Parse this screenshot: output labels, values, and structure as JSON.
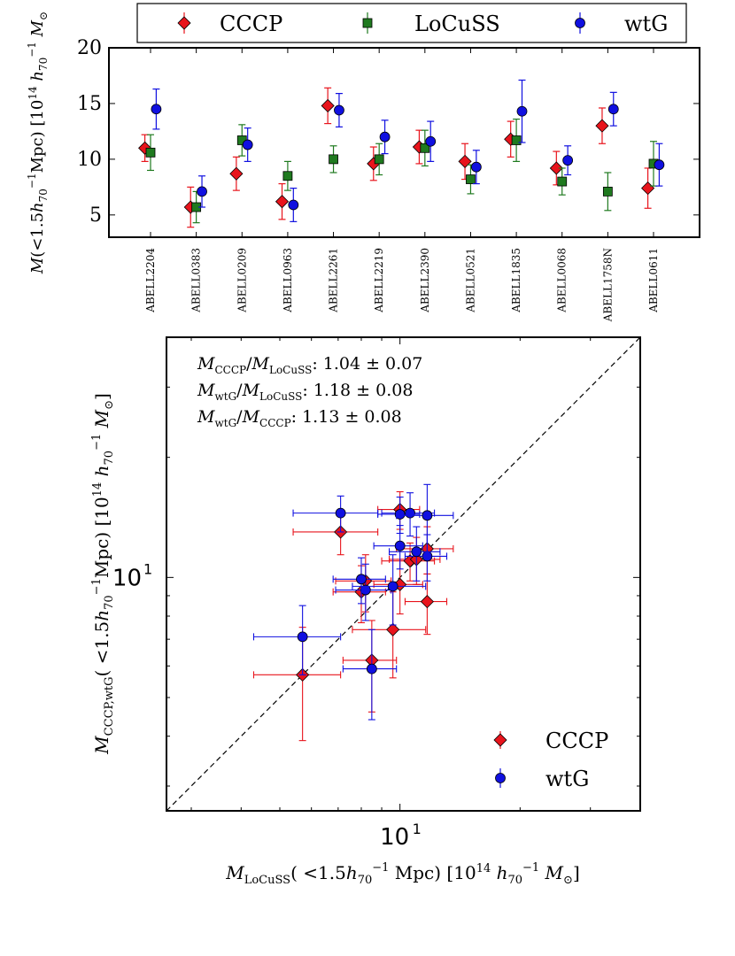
{
  "legend_top": {
    "entries": [
      {
        "label": "CCCP",
        "marker": "diamond",
        "color": "#e8141c"
      },
      {
        "label": "LoCuSS",
        "marker": "square",
        "color": "#1f7a1f"
      },
      {
        "label": "wtG",
        "marker": "circle",
        "color": "#1010e0"
      }
    ]
  },
  "chart_data": [
    {
      "type": "scatter",
      "title": "",
      "ylabel": "M(<1.5h_70^-1 Mpc) [10^14 h_70^-1 M_sun]",
      "ylabel_parts": {
        "pre": "M",
        "mid": "(<1.5",
        "h": "h",
        "sub": "70",
        "sup": "−1",
        "mpc": "Mpc) [10",
        "exp": "14",
        "tail": " M",
        "sun": "⊙"
      },
      "ylim": [
        3,
        20
      ],
      "yticks": [
        5,
        10,
        15,
        20
      ],
      "categories": [
        "ABELL2204",
        "ABELL0383",
        "ABELL0209",
        "ABELL0963",
        "ABELL2261",
        "ABELL2219",
        "ABELL2390",
        "ABELL0521",
        "ABELL1835",
        "ABELL0068",
        "ABELL1758N",
        "ABELL0611"
      ],
      "series": [
        {
          "name": "CCCP",
          "color": "#e8141c",
          "marker": "diamond",
          "offset": -0.2,
          "values": [
            11.0,
            5.7,
            8.7,
            6.2,
            14.8,
            9.6,
            11.1,
            9.8,
            11.8,
            9.2,
            13.0,
            7.4
          ],
          "err": [
            1.2,
            1.8,
            1.5,
            1.6,
            1.6,
            1.5,
            1.5,
            1.6,
            1.6,
            1.5,
            1.6,
            1.8
          ]
        },
        {
          "name": "LoCuSS",
          "color": "#1f7a1f",
          "marker": "square",
          "offset": 0.0,
          "values": [
            10.6,
            5.7,
            11.7,
            8.5,
            10.0,
            10.0,
            11.0,
            8.2,
            11.7,
            8.0,
            7.1,
            9.6
          ],
          "err": [
            1.6,
            1.4,
            1.4,
            1.3,
            1.2,
            1.4,
            1.6,
            1.3,
            1.9,
            1.2,
            1.7,
            2.0
          ]
        },
        {
          "name": "wtG",
          "color": "#1010e0",
          "marker": "circle",
          "offset": 0.2,
          "values": [
            14.5,
            7.1,
            11.3,
            5.9,
            14.4,
            12.0,
            11.6,
            9.3,
            14.3,
            9.9,
            14.5,
            9.5
          ],
          "err": [
            1.8,
            1.4,
            1.5,
            1.5,
            1.5,
            1.5,
            1.8,
            1.5,
            2.8,
            1.3,
            1.5,
            1.9
          ]
        }
      ]
    },
    {
      "type": "scatter",
      "xscale": "log",
      "yscale": "log",
      "xlim": [
        2.6,
        40
      ],
      "ylim": [
        2.6,
        40
      ],
      "xticks": [
        {
          "value": 10,
          "label": "10",
          "exp": "1"
        }
      ],
      "yticks": [
        {
          "value": 10,
          "label": "10",
          "exp": "1"
        }
      ],
      "xlabel_parts": {
        "m": "M",
        "sub": "LoCuSS",
        "mid": "( <1.5",
        "h": "h",
        "hsub": "70",
        "hsup": "−1",
        "mpc": " Mpc)  [10",
        "exp": "14",
        "tail": " M",
        "sun": "⊙",
        "end": "]"
      },
      "ylabel_parts": {
        "m": "M",
        "sub": "CCCP,wtG",
        "mid": "( <1.5",
        "h": "h",
        "hsub": "70",
        "hsup": "−1",
        "mpc": "Mpc)  [10",
        "exp": "14",
        "tail": " M",
        "sun": "⊙",
        "end": "]"
      },
      "diagonal": "y = x (dashed)",
      "annotations": [
        {
          "num": "CCCP",
          "den": "LoCuSS",
          "value": ": 1.04 ± 0.07"
        },
        {
          "num": "wtG",
          "den": "LoCuSS",
          "value": ": 1.18 ± 0.08"
        },
        {
          "num": "wtG",
          "den": "CCCP",
          "value": ": 1.13 ± 0.08"
        }
      ],
      "legend": {
        "location": "lower right",
        "entries": [
          {
            "label": "CCCP",
            "marker": "diamond",
            "color": "#e8141c"
          },
          {
            "label": "wtG",
            "marker": "circle",
            "color": "#1010e0"
          }
        ]
      },
      "series": [
        {
          "name": "CCCP",
          "color": "#e8141c",
          "marker": "diamond",
          "x": [
            10.6,
            5.7,
            11.7,
            8.5,
            10.0,
            10.0,
            11.0,
            8.2,
            11.7,
            8.0,
            7.1,
            9.6
          ],
          "y": [
            11.0,
            5.7,
            8.7,
            6.2,
            14.8,
            9.6,
            11.1,
            9.8,
            11.8,
            9.2,
            13.0,
            7.4
          ],
          "xerr": [
            1.6,
            1.4,
            1.4,
            1.3,
            1.2,
            1.4,
            1.6,
            1.3,
            1.9,
            1.2,
            1.7,
            2.0
          ],
          "yerr": [
            1.2,
            1.8,
            1.5,
            1.6,
            1.6,
            1.5,
            1.5,
            1.6,
            1.6,
            1.5,
            1.6,
            1.8
          ]
        },
        {
          "name": "wtG",
          "color": "#1010e0",
          "marker": "circle",
          "x": [
            10.6,
            5.7,
            11.7,
            8.5,
            10.0,
            10.0,
            11.0,
            8.2,
            11.7,
            8.0,
            7.1,
            9.6
          ],
          "y": [
            14.5,
            7.1,
            11.3,
            5.9,
            14.4,
            12.0,
            11.6,
            9.3,
            14.3,
            9.9,
            14.5,
            9.5
          ],
          "xerr": [
            1.6,
            1.4,
            1.4,
            1.3,
            1.2,
            1.4,
            1.6,
            1.3,
            1.9,
            1.2,
            1.7,
            2.0
          ],
          "yerr": [
            1.8,
            1.4,
            1.5,
            1.5,
            1.5,
            1.5,
            1.8,
            1.5,
            2.8,
            1.3,
            1.5,
            1.9
          ]
        }
      ]
    }
  ]
}
